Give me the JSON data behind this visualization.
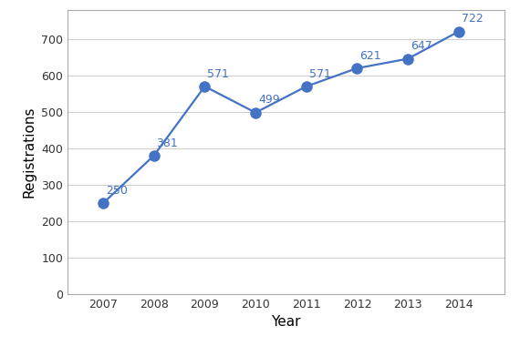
{
  "years": [
    2007,
    2008,
    2009,
    2010,
    2011,
    2012,
    2013,
    2014
  ],
  "values": [
    250,
    381,
    571,
    499,
    571,
    621,
    647,
    722
  ],
  "line_color": "#4472C4",
  "marker_color": "#4472C4",
  "xlabel": "Year",
  "ylabel": "Registrations",
  "ylim": [
    0,
    780
  ],
  "yticks": [
    0,
    100,
    200,
    300,
    400,
    500,
    600,
    700
  ],
  "grid_color": "#D0D0D0",
  "background_color": "#FFFFFF",
  "plot_bg_color": "#FFFFFF",
  "label_fontsize": 9,
  "axis_label_fontsize": 11,
  "annot_fontsize": 9,
  "marker_size": 8,
  "line_width": 1.6,
  "spine_color": "#AAAAAA",
  "tick_label_color": "#333333"
}
